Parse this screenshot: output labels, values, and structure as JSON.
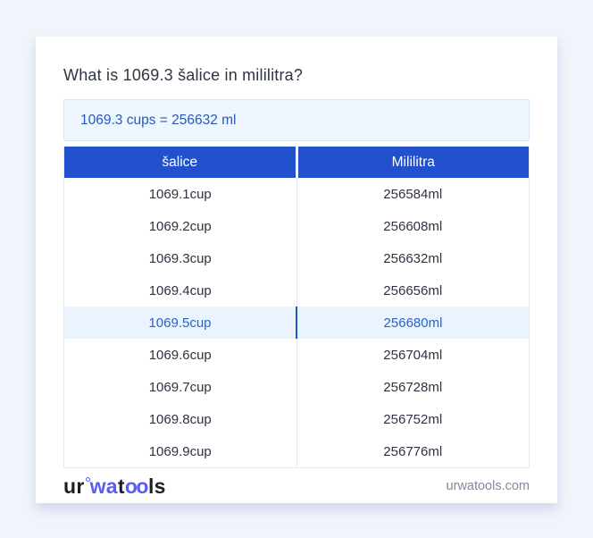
{
  "page": {
    "question_title": "What is 1069.3 šalice in mililitra?"
  },
  "result_box": {
    "text": "1069.3 cups = 256632 ml"
  },
  "table": {
    "headers": [
      "šalice",
      "Mililitra"
    ],
    "rows": [
      {
        "cup": "1069.1cup",
        "ml": "256584ml",
        "highlight": false
      },
      {
        "cup": "1069.2cup",
        "ml": "256608ml",
        "highlight": false
      },
      {
        "cup": "1069.3cup",
        "ml": "256632ml",
        "highlight": false
      },
      {
        "cup": "1069.4cup",
        "ml": "256656ml",
        "highlight": false
      },
      {
        "cup": "1069.5cup",
        "ml": "256680ml",
        "highlight": true
      },
      {
        "cup": "1069.6cup",
        "ml": "256704ml",
        "highlight": false
      },
      {
        "cup": "1069.7cup",
        "ml": "256728ml",
        "highlight": false
      },
      {
        "cup": "1069.8cup",
        "ml": "256752ml",
        "highlight": false
      },
      {
        "cup": "1069.9cup",
        "ml": "256776ml",
        "highlight": false
      }
    ]
  },
  "footer": {
    "logo": {
      "part1": "ur",
      "part2": "wa",
      "part3": "t",
      "part4": "oo",
      "part5": "ls"
    },
    "site": "urwatools.com"
  },
  "colors": {
    "page_background": "#f1f4fa",
    "card_background": "#ffffff",
    "header_blue": "#2151cd",
    "result_box_background": "#eef6fe",
    "result_text_blue": "#2a58ba",
    "highlight_row_background": "#ebf3fe",
    "highlight_text_blue": "#2764c7",
    "logo_accent": "#5a5cf2",
    "footer_text": "#818b9e"
  }
}
